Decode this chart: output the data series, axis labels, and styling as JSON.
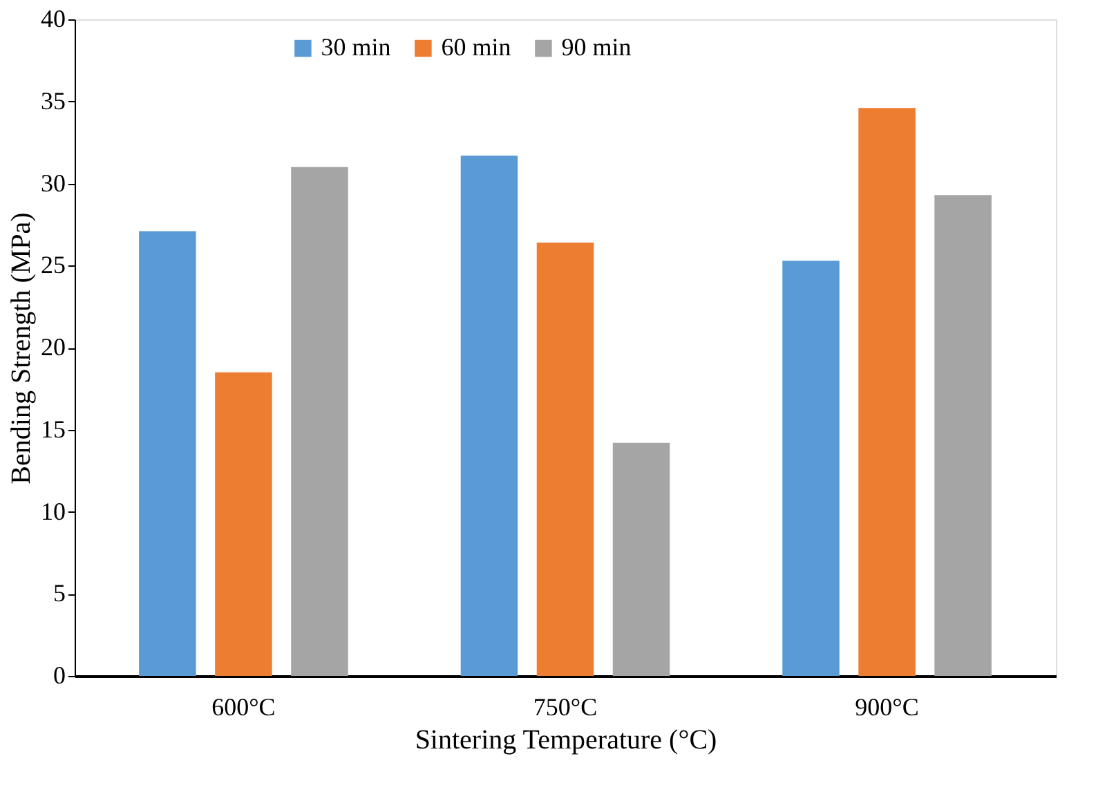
{
  "chart_data": {
    "type": "bar",
    "xlabel": "Sintering Temperature (°C)",
    "ylabel": "Bending Strength (MPa)",
    "categories": [
      "600°C",
      "750°C",
      "900°C"
    ],
    "series": [
      {
        "name": "30 min",
        "color": "#5b9bd5",
        "values": [
          27.1,
          31.7,
          25.3
        ]
      },
      {
        "name": "60 min",
        "color": "#ed7d31",
        "values": [
          18.5,
          26.4,
          34.6
        ]
      },
      {
        "name": "90 min",
        "color": "#a5a5a5",
        "values": [
          31.0,
          14.2,
          29.3
        ]
      }
    ],
    "ylim": [
      0,
      40
    ],
    "yticks": [
      0,
      5,
      10,
      15,
      20,
      25,
      30,
      35,
      40
    ],
    "grid": false,
    "legend": "top"
  }
}
